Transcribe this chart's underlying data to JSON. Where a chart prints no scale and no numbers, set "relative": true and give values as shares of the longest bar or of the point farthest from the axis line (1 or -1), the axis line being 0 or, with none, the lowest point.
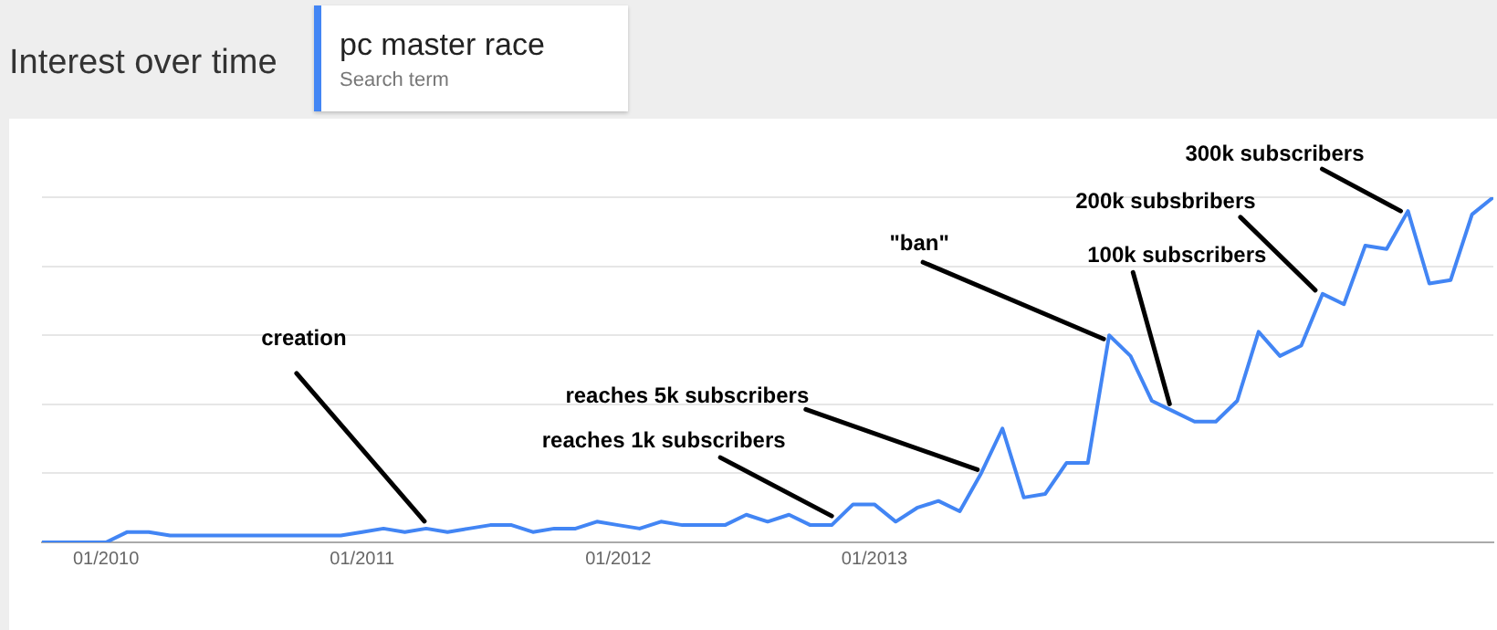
{
  "chart_data": {
    "type": "line",
    "title": "Interest over time",
    "legend_title": "Search term",
    "legend": "top",
    "relative": true,
    "grid": "y",
    "marker": "none",
    "line_style": "solid",
    "x": [
      "2009-10",
      "2009-11",
      "2009-12",
      "2010-01",
      "2010-02",
      "2010-03",
      "2010-04",
      "2010-05",
      "2010-06",
      "2010-07",
      "2010-08",
      "2010-09",
      "2010-10",
      "2010-11",
      "2010-12",
      "2011-01",
      "2011-02",
      "2011-03",
      "2011-04",
      "2011-05",
      "2011-06",
      "2011-07",
      "2011-08",
      "2011-09",
      "2011-10",
      "2011-11",
      "2011-12",
      "2012-01",
      "2012-02",
      "2012-03",
      "2012-04",
      "2012-05",
      "2012-06",
      "2012-07",
      "2012-08",
      "2012-09",
      "2012-10",
      "2012-11",
      "2012-12",
      "2013-01",
      "2013-02",
      "2013-03",
      "2013-04",
      "2013-05",
      "2013-06",
      "2013-07",
      "2013-08",
      "2013-09",
      "2013-10",
      "2013-11",
      "2013-12",
      "2014-01",
      "2014-02",
      "2014-03",
      "2014-04",
      "2014-05",
      "2014-06",
      "2014-07",
      "2014-08",
      "2014-09",
      "2014-10",
      "2014-11",
      "2014-12",
      "2015-01",
      "2015-02",
      "2015-03",
      "2015-04",
      "2015-05",
      "2015-06"
    ],
    "xlim": [
      "2009-10",
      "2015-06"
    ],
    "xticks": [
      {
        "value": "2010-01",
        "label": "01/2010"
      },
      {
        "value": "2011-01",
        "label": "01/2011"
      },
      {
        "value": "2012-01",
        "label": "01/2012"
      },
      {
        "value": "2013-01",
        "label": "01/2013"
      }
    ],
    "series": [
      {
        "name": "pc master race",
        "color": "#4285f4",
        "values": [
          0,
          0,
          0,
          0,
          0.03,
          0.03,
          0.02,
          0.02,
          0.02,
          0.02,
          0.02,
          0.02,
          0.02,
          0.02,
          0.02,
          0.03,
          0.04,
          0.03,
          0.04,
          0.03,
          0.04,
          0.05,
          0.05,
          0.03,
          0.04,
          0.04,
          0.06,
          0.05,
          0.04,
          0.06,
          0.05,
          0.05,
          0.05,
          0.08,
          0.06,
          0.08,
          0.05,
          0.05,
          0.11,
          0.11,
          0.06,
          0.1,
          0.12,
          0.09,
          0.2,
          0.33,
          0.13,
          0.14,
          0.23,
          0.23,
          0.6,
          0.54,
          0.41,
          0.38,
          0.35,
          0.35,
          0.41,
          0.61,
          0.54,
          0.57,
          0.72,
          0.69,
          0.86,
          0.85,
          0.96,
          0.75,
          0.76,
          0.95,
          1
        ]
      }
    ],
    "annotations": [
      {
        "text": "creation",
        "x": "2011-04",
        "y": 0.04
      },
      {
        "text": "reaches 1k subscribers",
        "x": "2012-11",
        "y": 0.05
      },
      {
        "text": "reaches 5k subscribers",
        "x": "2013-06",
        "y": 0.2
      },
      {
        "text": "\"ban\"",
        "x": "2013-12",
        "y": 0.6
      },
      {
        "text": "100k subscribers",
        "x": "2014-03",
        "y": 0.38
      },
      {
        "text": "200k subsbribers",
        "x": "2014-10",
        "y": 0.72
      },
      {
        "text": "300k subscribers",
        "x": "2015-02",
        "y": 0.96
      }
    ]
  }
}
